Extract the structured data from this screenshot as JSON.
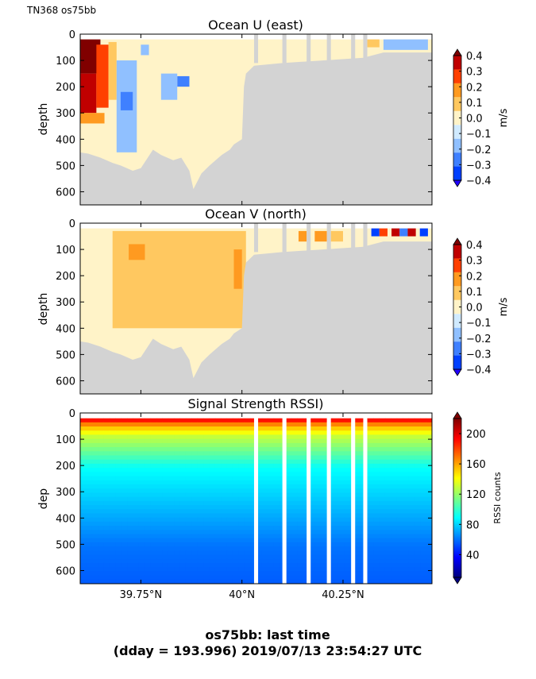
{
  "header": {
    "cruise_label": "TN368 os75bb"
  },
  "footer": {
    "line1": "os75bb: last time",
    "line2": "(dday = 193.996) 2019/07/13 23:54:27 UTC"
  },
  "colors": {
    "mask": "#d3d3d3",
    "u_v_scale": [
      "#2000ff",
      "#0040ff",
      "#3f80ff",
      "#90c0ff",
      "#d0eaff",
      "#fff3c8",
      "#ffc860",
      "#ff9a20",
      "#ff4000",
      "#c00000",
      "#800000"
    ],
    "rssi_scale": [
      "#00007f",
      "#0000ff",
      "#007fff",
      "#00ffff",
      "#7fff7f",
      "#ffff00",
      "#ff7f00",
      "#ff0000",
      "#7f0000"
    ]
  },
  "chart_data": [
    {
      "type": "heatmap",
      "title": "Ocean U (east)",
      "ylabel": "depth",
      "yticks": [
        "0",
        "100",
        "200",
        "300",
        "400",
        "500",
        "600"
      ],
      "ylim": [
        650,
        0
      ],
      "xlim": [
        39.6,
        40.47
      ],
      "xticks": [
        39.75,
        40.0,
        40.25
      ],
      "colorbar": {
        "label": "m/s",
        "ticks": [
          "0.4",
          "0.3",
          "0.2",
          "0.1",
          "0.0",
          "−0.1",
          "−0.2",
          "−0.3",
          "−0.4"
        ],
        "range": [
          -0.4,
          0.4
        ]
      },
      "bottom_depth": [
        [
          39.6,
          450
        ],
        [
          39.62,
          455
        ],
        [
          39.65,
          470
        ],
        [
          39.68,
          490
        ],
        [
          39.7,
          500
        ],
        [
          39.73,
          520
        ],
        [
          39.75,
          510
        ],
        [
          39.78,
          440
        ],
        [
          39.8,
          460
        ],
        [
          39.83,
          480
        ],
        [
          39.85,
          470
        ],
        [
          39.87,
          520
        ],
        [
          39.88,
          590
        ],
        [
          39.9,
          530
        ],
        [
          39.92,
          500
        ],
        [
          39.95,
          460
        ],
        [
          39.97,
          440
        ],
        [
          39.98,
          420
        ],
        [
          40.0,
          400
        ],
        [
          40.005,
          200
        ],
        [
          40.01,
          150
        ],
        [
          40.03,
          120
        ],
        [
          40.1,
          110
        ],
        [
          40.2,
          100
        ],
        [
          40.3,
          90
        ],
        [
          40.35,
          70
        ],
        [
          40.47,
          70
        ]
      ],
      "regions": [
        {
          "x": [
            39.6,
            39.65
          ],
          "depth": [
            20,
            150
          ],
          "value": 0.4
        },
        {
          "x": [
            39.6,
            39.64
          ],
          "depth": [
            150,
            300
          ],
          "value": 0.35
        },
        {
          "x": [
            39.64,
            39.67
          ],
          "depth": [
            40,
            280
          ],
          "value": 0.25
        },
        {
          "x": [
            39.6,
            39.66
          ],
          "depth": [
            300,
            340
          ],
          "value": 0.15
        },
        {
          "x": [
            39.67,
            39.69
          ],
          "depth": [
            30,
            250
          ],
          "value": 0.1
        },
        {
          "x": [
            39.69,
            39.74
          ],
          "depth": [
            100,
            450
          ],
          "value": -0.15
        },
        {
          "x": [
            39.7,
            39.73
          ],
          "depth": [
            220,
            290
          ],
          "value": -0.25
        },
        {
          "x": [
            39.75,
            39.77
          ],
          "depth": [
            40,
            80
          ],
          "value": -0.15
        },
        {
          "x": [
            39.84,
            39.87
          ],
          "depth": [
            160,
            200
          ],
          "value": -0.25
        },
        {
          "x": [
            39.8,
            39.84
          ],
          "depth": [
            150,
            250
          ],
          "value": -0.15
        },
        {
          "x": [
            40.31,
            40.34
          ],
          "depth": [
            20,
            50
          ],
          "value": 0.05
        },
        {
          "x": [
            40.35,
            40.46
          ],
          "depth": [
            20,
            60
          ],
          "value": -0.15
        }
      ],
      "gaps": [
        [
          40.03,
          40.04
        ],
        [
          40.1,
          40.11
        ],
        [
          40.16,
          40.17
        ],
        [
          40.21,
          40.22
        ],
        [
          40.27,
          40.28
        ],
        [
          40.3,
          40.31
        ]
      ]
    },
    {
      "type": "heatmap",
      "title": "Ocean V (north)",
      "ylabel": "depth",
      "yticks": [
        "0",
        "100",
        "200",
        "300",
        "400",
        "500",
        "600"
      ],
      "ylim": [
        650,
        0
      ],
      "xlim": [
        39.6,
        40.47
      ],
      "xticks": [
        39.75,
        40.0,
        40.25
      ],
      "colorbar": {
        "label": "m/s",
        "ticks": [
          "0.4",
          "0.3",
          "0.2",
          "0.1",
          "0.0",
          "−0.1",
          "−0.2",
          "−0.3",
          "−0.4"
        ],
        "range": [
          -0.4,
          0.4
        ]
      },
      "bottom_depth": [
        [
          39.6,
          450
        ],
        [
          39.62,
          455
        ],
        [
          39.65,
          470
        ],
        [
          39.68,
          490
        ],
        [
          39.7,
          500
        ],
        [
          39.73,
          520
        ],
        [
          39.75,
          510
        ],
        [
          39.78,
          440
        ],
        [
          39.8,
          460
        ],
        [
          39.83,
          480
        ],
        [
          39.85,
          470
        ],
        [
          39.87,
          520
        ],
        [
          39.88,
          590
        ],
        [
          39.9,
          530
        ],
        [
          39.92,
          500
        ],
        [
          39.95,
          460
        ],
        [
          39.97,
          440
        ],
        [
          39.98,
          420
        ],
        [
          40.0,
          400
        ],
        [
          40.005,
          200
        ],
        [
          40.01,
          150
        ],
        [
          40.03,
          120
        ],
        [
          40.1,
          110
        ],
        [
          40.2,
          100
        ],
        [
          40.3,
          90
        ],
        [
          40.35,
          70
        ],
        [
          40.47,
          70
        ]
      ],
      "regions": [
        {
          "x": [
            39.68,
            40.01
          ],
          "depth": [
            30,
            400
          ],
          "value": 0.05
        },
        {
          "x": [
            39.72,
            39.76
          ],
          "depth": [
            80,
            140
          ],
          "value": 0.15
        },
        {
          "x": [
            39.98,
            40.0
          ],
          "depth": [
            100,
            250
          ],
          "value": 0.15
        },
        {
          "x": [
            40.14,
            40.16
          ],
          "depth": [
            30,
            70
          ],
          "value": 0.15
        },
        {
          "x": [
            40.18,
            40.21
          ],
          "depth": [
            30,
            70
          ],
          "value": 0.15
        },
        {
          "x": [
            40.22,
            40.25
          ],
          "depth": [
            30,
            70
          ],
          "value": 0.05
        },
        {
          "x": [
            40.32,
            40.34
          ],
          "depth": [
            20,
            50
          ],
          "value": -0.35
        },
        {
          "x": [
            40.34,
            40.36
          ],
          "depth": [
            20,
            50
          ],
          "value": 0.25
        },
        {
          "x": [
            40.37,
            40.39
          ],
          "depth": [
            20,
            50
          ],
          "value": 0.35
        },
        {
          "x": [
            40.39,
            40.41
          ],
          "depth": [
            20,
            50
          ],
          "value": -0.25
        },
        {
          "x": [
            40.41,
            40.43
          ],
          "depth": [
            20,
            50
          ],
          "value": 0.35
        },
        {
          "x": [
            40.44,
            40.46
          ],
          "depth": [
            20,
            50
          ],
          "value": -0.3
        }
      ],
      "gaps": [
        [
          40.03,
          40.04
        ],
        [
          40.1,
          40.11
        ],
        [
          40.16,
          40.17
        ],
        [
          40.21,
          40.22
        ],
        [
          40.27,
          40.28
        ],
        [
          40.3,
          40.31
        ]
      ]
    },
    {
      "type": "heatmap",
      "title": "Signal Strength RSSI)",
      "ylabel": "dep",
      "yticks": [
        "0",
        "100",
        "200",
        "300",
        "400",
        "500",
        "600"
      ],
      "ylim": [
        650,
        0
      ],
      "xlim": [
        39.6,
        40.47
      ],
      "xticks": [
        39.75,
        40.0,
        40.25
      ],
      "xticklabels": [
        "39.75°N",
        "40°N",
        "40.25°N"
      ],
      "colorbar": {
        "label": "RSSI counts",
        "ticks": [
          "200",
          "160",
          "120",
          "80",
          "40"
        ],
        "range": [
          10,
          220
        ]
      },
      "profile": [
        [
          20,
          190
        ],
        [
          40,
          160
        ],
        [
          80,
          130
        ],
        [
          140,
          110
        ],
        [
          200,
          90
        ],
        [
          300,
          80
        ],
        [
          400,
          70
        ],
        [
          500,
          60
        ],
        [
          650,
          55
        ]
      ],
      "gaps": [
        [
          40.03,
          40.04
        ],
        [
          40.1,
          40.11
        ],
        [
          40.16,
          40.17
        ],
        [
          40.21,
          40.22
        ],
        [
          40.27,
          40.28
        ],
        [
          40.3,
          40.31
        ]
      ]
    }
  ]
}
